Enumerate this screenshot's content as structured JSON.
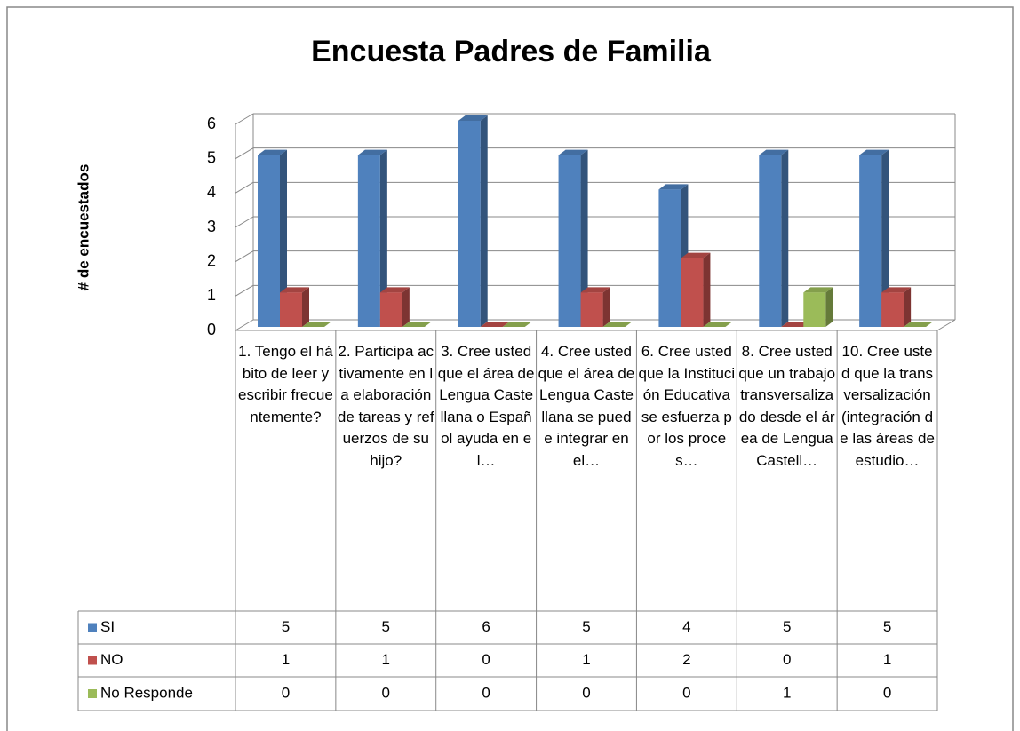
{
  "chart_data": {
    "type": "bar3d",
    "title": "Encuesta Padres de Familia",
    "y_label": "# de encuestados",
    "categories": [
      "1. Tengo el hábito de leer y escribir frecuentemente?",
      "2. Participa activamente en la elaboración de tareas y refuerzos de su hijo?",
      "3. Cree usted que el área de Lengua Castellana o Español ayuda en el…",
      "4. Cree usted que el área de Lengua Castellana se puede integrar en el…",
      "6. Cree usted que la Institución Educativa se esfuerza por los proces…",
      "8. Cree usted que un trabajo transversalizado desde el área de Lengua Castell…",
      "10. Cree usted que la transversalización (integración de las áreas de estudio…"
    ],
    "series": [
      {
        "name": "SI",
        "color": "#4f81bd",
        "values": [
          5,
          5,
          6,
          5,
          4,
          5,
          5
        ]
      },
      {
        "name": "NO",
        "color": "#c0504d",
        "values": [
          1,
          1,
          0,
          1,
          2,
          0,
          1
        ]
      },
      {
        "name": "No Responde",
        "color": "#9bbb59",
        "values": [
          0,
          0,
          0,
          0,
          0,
          1,
          0
        ]
      }
    ],
    "ylim": [
      0,
      6
    ],
    "yticks": [
      0,
      1,
      2,
      3,
      4,
      5,
      6
    ],
    "grid": true,
    "data_table": true
  }
}
